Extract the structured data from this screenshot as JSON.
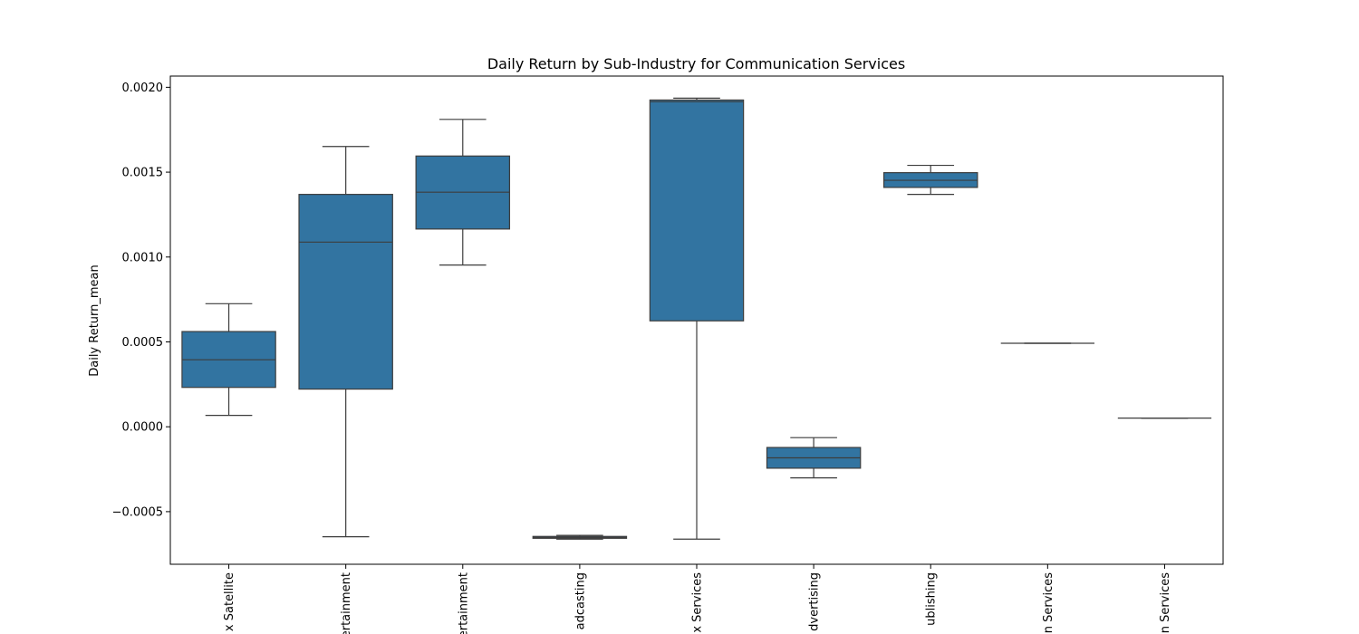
{
  "chart_data": {
    "type": "box",
    "title": "Daily Return by Sub-Industry for Communication Services",
    "xlabel": "",
    "ylabel": "Daily Return_mean",
    "ylim": [
      -0.00081,
      0.002066
    ],
    "yticks": [
      -0.0005,
      0.0,
      0.0005,
      0.001,
      0.0015,
      0.002
    ],
    "ytick_labels": [
      "−0.0005",
      "0.0000",
      "0.0005",
      "0.0010",
      "0.0015",
      "0.0020"
    ],
    "categories": [
      "Cable & Satellite",
      "Movies & Entertainment",
      "Movies & Entertainment",
      "Broadcasting",
      "Interactive Media & Services",
      "Advertising",
      "Publishing",
      "Integrated Telecommunication Services",
      "Wireless Telecommunication Services"
    ],
    "tick_labels_visible": [
      "x Satellite",
      "ertainment",
      "ertainment",
      "adcasting",
      "x Services",
      "dvertising",
      "ublishing",
      "n Services",
      "n Services"
    ],
    "box_color": "#3274a1",
    "edge_color": "#3d3d3d",
    "boxes": [
      {
        "whisker_low": 6.7e-05,
        "q1": 0.000232,
        "median": 0.000395,
        "q3": 0.000561,
        "whisker_high": 0.000725
      },
      {
        "whisker_low": -0.000648,
        "q1": 0.000222,
        "median": 0.001088,
        "q3": 0.001369,
        "whisker_high": 0.001651
      },
      {
        "whisker_low": 0.000953,
        "q1": 0.001165,
        "median": 0.001382,
        "q3": 0.001595,
        "whisker_high": 0.001811
      },
      {
        "whisker_low": -0.000662,
        "q1": -0.000657,
        "median": -0.000652,
        "q3": -0.000646,
        "whisker_high": -0.00064
      },
      {
        "whisker_low": -0.000662,
        "q1": 0.000624,
        "median": 0.001915,
        "q3": 0.001925,
        "whisker_high": 0.001936
      },
      {
        "whisker_low": -0.000301,
        "q1": -0.000244,
        "median": -0.000183,
        "q3": -0.000122,
        "whisker_high": -6.4e-05
      },
      {
        "whisker_low": 0.001369,
        "q1": 0.00141,
        "median": 0.001452,
        "q3": 0.001497,
        "whisker_high": 0.00154
      },
      {
        "whisker_low": 0.000492,
        "q1": 0.000492,
        "median": 0.000492,
        "q3": 0.000492,
        "whisker_high": 0.000492
      },
      {
        "whisker_low": 5.1e-05,
        "q1": 5.1e-05,
        "median": 5.1e-05,
        "q3": 5.1e-05,
        "whisker_high": 5.1e-05
      }
    ],
    "grid": false,
    "legend": "none"
  }
}
